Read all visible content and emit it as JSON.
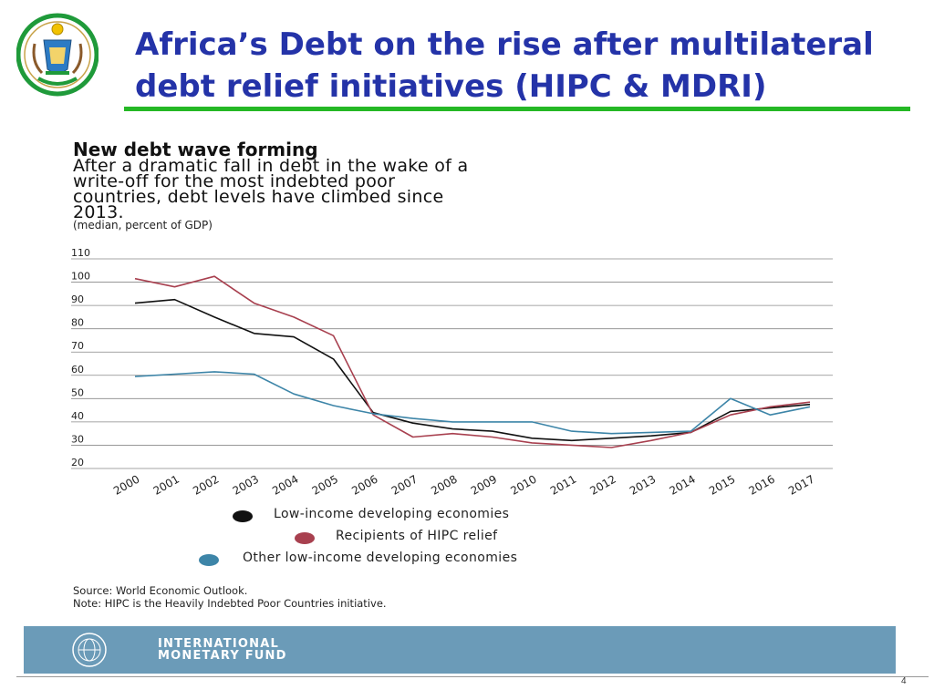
{
  "slide": {
    "title_line1": "Africa’s Debt on the rise after multilateral",
    "title_line2": "debt relief initiatives (HIPC & MDRI)",
    "page_number": "4",
    "accent_color": "#25b825",
    "title_color": "#2433a8"
  },
  "imf": {
    "name_line1": "INTERNATIONAL",
    "name_line2": "MONETARY FUND",
    "band_color": "#6b9bb8"
  },
  "chart_data": {
    "type": "line",
    "title": "New debt wave forming",
    "subtitle_lines": [
      "After a dramatic fall in debt in the wake of a",
      "write-off for the most indebted poor",
      "countries, debt levels have climbed since",
      "2013."
    ],
    "unit": "(median, percent of GDP)",
    "x": [
      "2000",
      "2001",
      "2002",
      "2003",
      "2004",
      "2005",
      "2006",
      "2007",
      "2008",
      "2009",
      "2010",
      "2011",
      "2012",
      "2013",
      "2014",
      "2015",
      "2016",
      "2017"
    ],
    "ylim": [
      20,
      110
    ],
    "yticks": [
      "110",
      "100",
      "90",
      "80",
      "70",
      "60",
      "50",
      "40",
      "30",
      "20"
    ],
    "grid": true,
    "legend_position": "bottom",
    "series": [
      {
        "name": "Low-income developing economies",
        "color": "#111111",
        "values": [
          91,
          92.5,
          85,
          78,
          76.5,
          67,
          44,
          39.5,
          37,
          36,
          33,
          32,
          33,
          34,
          35.5,
          44.5,
          46,
          47.5
        ]
      },
      {
        "name": "Recipients of HIPC relief",
        "color": "#a8404f",
        "values": [
          101.5,
          98,
          102.5,
          91,
          85,
          77,
          43,
          33.5,
          35,
          33.5,
          31,
          30,
          29,
          32,
          35.5,
          43,
          46.5,
          48.5
        ]
      },
      {
        "name": "Other low-income developing economies",
        "color": "#3d85a8",
        "values": [
          59.5,
          60.5,
          61.5,
          60.5,
          52,
          47,
          43.5,
          41.5,
          40,
          40,
          40,
          36,
          35,
          35.5,
          36,
          50,
          43,
          46.5
        ]
      }
    ],
    "source": "Source: World Economic Outlook.",
    "note": "Note: HIPC is the Heavily Indebted Poor Countries initiative."
  }
}
